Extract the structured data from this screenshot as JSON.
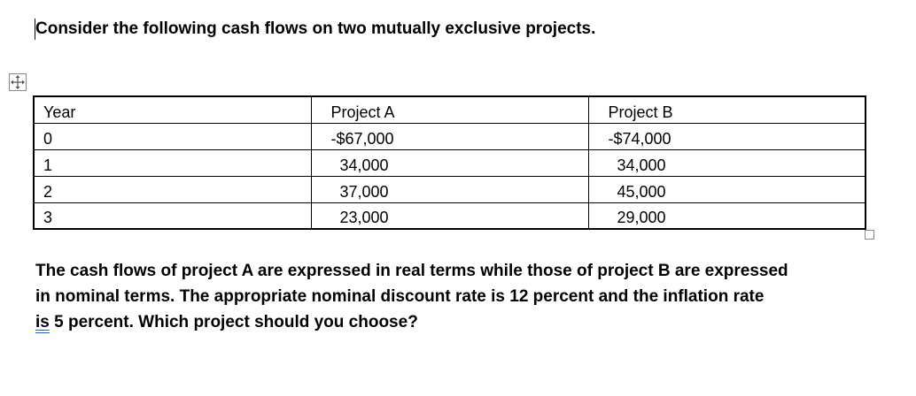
{
  "heading": "Consider the following cash flows on two mutually exclusive projects.",
  "table": {
    "headers": [
      "Year",
      "Project A",
      "Project B"
    ],
    "rows": [
      [
        "0",
        "-$67,000",
        "-$74,000"
      ],
      [
        "1",
        "34,000",
        "34,000"
      ],
      [
        "2",
        "37,000",
        "45,000"
      ],
      [
        "3",
        "23,000",
        "29,000"
      ]
    ]
  },
  "paragraph": {
    "line1": "The cash flows of project A are expressed in real terms while those of project B are expressed",
    "line2": "in nominal terms.  The appropriate nominal discount rate is 12 percent and the inflation rate",
    "line3_flagged": "is",
    "line3_rest": " 5 percent.  Which project should you choose?"
  },
  "icons": {
    "table_move_handle": "move-arrows-icon",
    "table_resize_handle": "resize-square-icon"
  },
  "colors": {
    "grammar_underline": "#1f5fd6"
  }
}
